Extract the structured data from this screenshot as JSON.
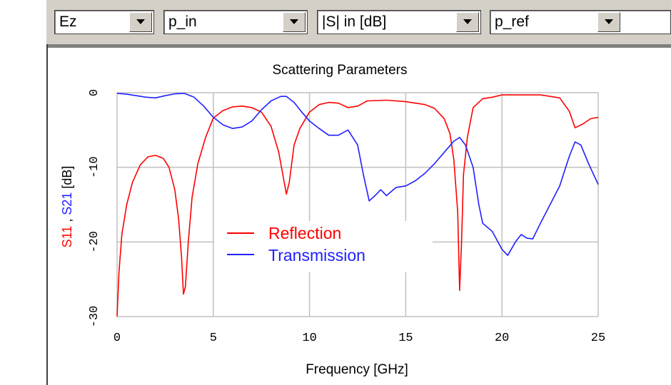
{
  "toolbar": {
    "field_select": {
      "value": "Ez"
    },
    "port_in_select": {
      "value": "p_in"
    },
    "quantity_select": {
      "value": "|S| in [dB]"
    },
    "port_ref_select": {
      "value": "p_ref"
    }
  },
  "icons": {
    "dropdown": "chevron-down-icon"
  },
  "colors": {
    "reflection": "#ff0000",
    "transmission": "#2020ff",
    "grid": "#c0c0c0",
    "frame": "#d4d0c8"
  },
  "chart_data": {
    "type": "line",
    "title": "Scattering Parameters",
    "xlabel": "Frequency [GHz]",
    "ylabel_parts": [
      "S11",
      " , ",
      "S21",
      " [dB]"
    ],
    "xlim": [
      0,
      25
    ],
    "ylim": [
      -30,
      0
    ],
    "xticks": [
      0,
      5,
      10,
      15,
      20,
      25
    ],
    "yticks": [
      0,
      -10,
      -20,
      -30
    ],
    "grid": true,
    "legend_placement": "center",
    "series": [
      {
        "name": "Reflection",
        "color": "#ff0000",
        "x": [
          0,
          0.1,
          0.25,
          0.5,
          0.8,
          1.2,
          1.6,
          2.0,
          2.4,
          2.7,
          3.0,
          3.2,
          3.35,
          3.45,
          3.55,
          3.7,
          3.9,
          4.2,
          4.6,
          5.0,
          5.5,
          6.0,
          6.5,
          7.0,
          7.5,
          8.0,
          8.4,
          8.65,
          8.8,
          8.95,
          9.2,
          9.5,
          10.0,
          10.5,
          11.0,
          11.5,
          12.0,
          12.5,
          13.0,
          14.0,
          15.0,
          16.0,
          16.5,
          17.0,
          17.3,
          17.5,
          17.7,
          17.8,
          17.9,
          18.0,
          18.2,
          18.5,
          19.0,
          19.5,
          20.0,
          21.0,
          22.0,
          23.0,
          23.5,
          23.8,
          24.2,
          24.6,
          25.0
        ],
        "y": [
          -30,
          -24,
          -19,
          -15,
          -12,
          -9.7,
          -8.6,
          -8.4,
          -8.8,
          -10,
          -13,
          -17,
          -22,
          -27,
          -26,
          -20,
          -14,
          -9.5,
          -6,
          -3.4,
          -2.4,
          -1.9,
          -1.8,
          -2.0,
          -2.6,
          -4.5,
          -8,
          -11.5,
          -13.6,
          -12,
          -7,
          -4.8,
          -2.6,
          -1.6,
          -1.3,
          -1.4,
          -2.0,
          -1.8,
          -1.1,
          -1.0,
          -1.2,
          -1.6,
          -2.1,
          -3.5,
          -5.5,
          -9,
          -16,
          -26.5,
          -20,
          -11,
          -6,
          -2.0,
          -0.8,
          -0.6,
          -0.3,
          -0.3,
          -0.3,
          -0.7,
          -2.5,
          -4.7,
          -4.2,
          -3.5,
          -3.3
        ]
      },
      {
        "name": "Transmission",
        "color": "#2020ff",
        "x": [
          0,
          0.5,
          1.0,
          1.5,
          2.0,
          2.5,
          3.0,
          3.5,
          4.0,
          4.5,
          5.0,
          5.5,
          6.0,
          6.5,
          7.0,
          7.5,
          8.0,
          8.5,
          8.8,
          9.2,
          9.6,
          10.0,
          10.5,
          11.0,
          11.5,
          12.0,
          12.5,
          12.8,
          13.1,
          13.4,
          13.7,
          14.0,
          14.5,
          15.0,
          15.5,
          16.0,
          16.5,
          17.0,
          17.5,
          17.8,
          18.1,
          18.5,
          18.8,
          19.0,
          19.5,
          20.0,
          20.3,
          20.7,
          21.0,
          21.3,
          21.6,
          22.0,
          22.5,
          23.0,
          23.5,
          23.8,
          24.1,
          24.5,
          25.0
        ],
        "y": [
          -0.1,
          -0.2,
          -0.4,
          -0.6,
          -0.7,
          -0.4,
          -0.15,
          -0.1,
          -0.6,
          -1.8,
          -3.3,
          -4.3,
          -4.8,
          -4.6,
          -3.8,
          -2.3,
          -1.1,
          -0.5,
          -0.5,
          -1.3,
          -2.6,
          -3.8,
          -4.8,
          -5.7,
          -5.7,
          -5.0,
          -7.0,
          -11,
          -14.5,
          -13.8,
          -13.0,
          -13.8,
          -12.7,
          -12.5,
          -11.8,
          -10.8,
          -9.5,
          -8.0,
          -6.5,
          -6.0,
          -7.0,
          -10,
          -15,
          -17.5,
          -18.6,
          -21.0,
          -21.8,
          -20.0,
          -19.0,
          -19.5,
          -19.6,
          -17.5,
          -15,
          -12.5,
          -8.5,
          -6.6,
          -7.0,
          -9.5,
          -12.3
        ]
      }
    ]
  }
}
